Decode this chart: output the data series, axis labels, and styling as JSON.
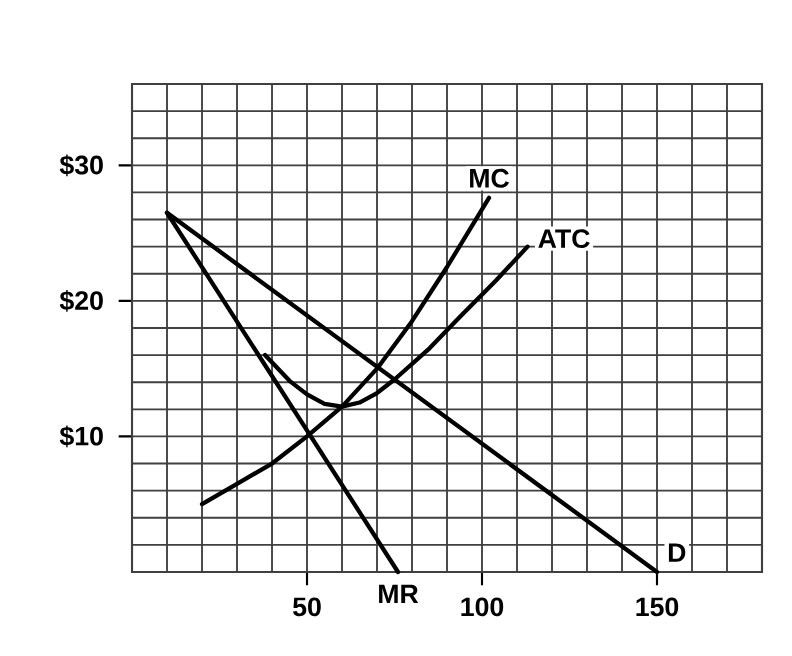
{
  "chart_data": {
    "type": "line",
    "xlim": [
      0,
      180
    ],
    "ylim": [
      0,
      36
    ],
    "xticks": [
      {
        "value": 10,
        "label": null
      },
      {
        "value": 20,
        "label": null
      },
      {
        "value": 30,
        "label": null
      },
      {
        "value": 40,
        "label": null
      },
      50,
      {
        "value": 60,
        "label": null
      },
      {
        "value": 70,
        "label": null
      },
      {
        "value": 80,
        "label": null
      },
      {
        "value": 90,
        "label": null
      },
      100,
      {
        "value": 110,
        "label": null
      },
      {
        "value": 120,
        "label": null
      },
      {
        "value": 130,
        "label": null
      },
      {
        "value": 140,
        "label": null
      },
      150,
      {
        "value": 160,
        "label": null
      },
      {
        "value": 170,
        "label": null
      }
    ],
    "yticks": [
      {
        "value": 2,
        "label": null
      },
      {
        "value": 4,
        "label": null
      },
      {
        "value": 6,
        "label": null
      },
      {
        "value": 8,
        "label": null
      },
      {
        "value": 10,
        "label": "$10"
      },
      {
        "value": 12,
        "label": null
      },
      {
        "value": 14,
        "label": null
      },
      {
        "value": 16,
        "label": null
      },
      {
        "value": 18,
        "label": null
      },
      {
        "value": 20,
        "label": "$20"
      },
      {
        "value": 22,
        "label": null
      },
      {
        "value": 24,
        "label": null
      },
      {
        "value": 26,
        "label": null
      },
      {
        "value": 28,
        "label": null
      },
      {
        "value": 30,
        "label": "$30"
      },
      {
        "value": 32,
        "label": null
      },
      {
        "value": 34,
        "label": null
      }
    ],
    "grid": true,
    "marker": "none",
    "line_style": "solid",
    "legend": false,
    "series": [
      {
        "name": "MR",
        "color": "#000000",
        "x": [
          10,
          76
        ],
        "values": [
          26.5,
          0
        ]
      },
      {
        "name": "D",
        "color": "#000000",
        "x": [
          10,
          150
        ],
        "values": [
          26.5,
          0
        ]
      },
      {
        "name": "MC",
        "color": "#000000",
        "x": [
          20,
          30,
          40,
          50,
          60,
          70,
          80,
          90,
          102
        ],
        "values": [
          5,
          6.5,
          8,
          10,
          12.2,
          15,
          18.5,
          22.5,
          27.6
        ]
      },
      {
        "name": "ATC",
        "color": "#000000",
        "x": [
          38,
          45,
          50,
          55,
          60,
          65,
          70,
          75,
          85,
          94,
          104,
          113
        ],
        "values": [
          16,
          14.1,
          13.1,
          12.4,
          12.2,
          12.5,
          13.2,
          14.2,
          16.5,
          18.9,
          21.5,
          24
        ]
      }
    ]
  }
}
